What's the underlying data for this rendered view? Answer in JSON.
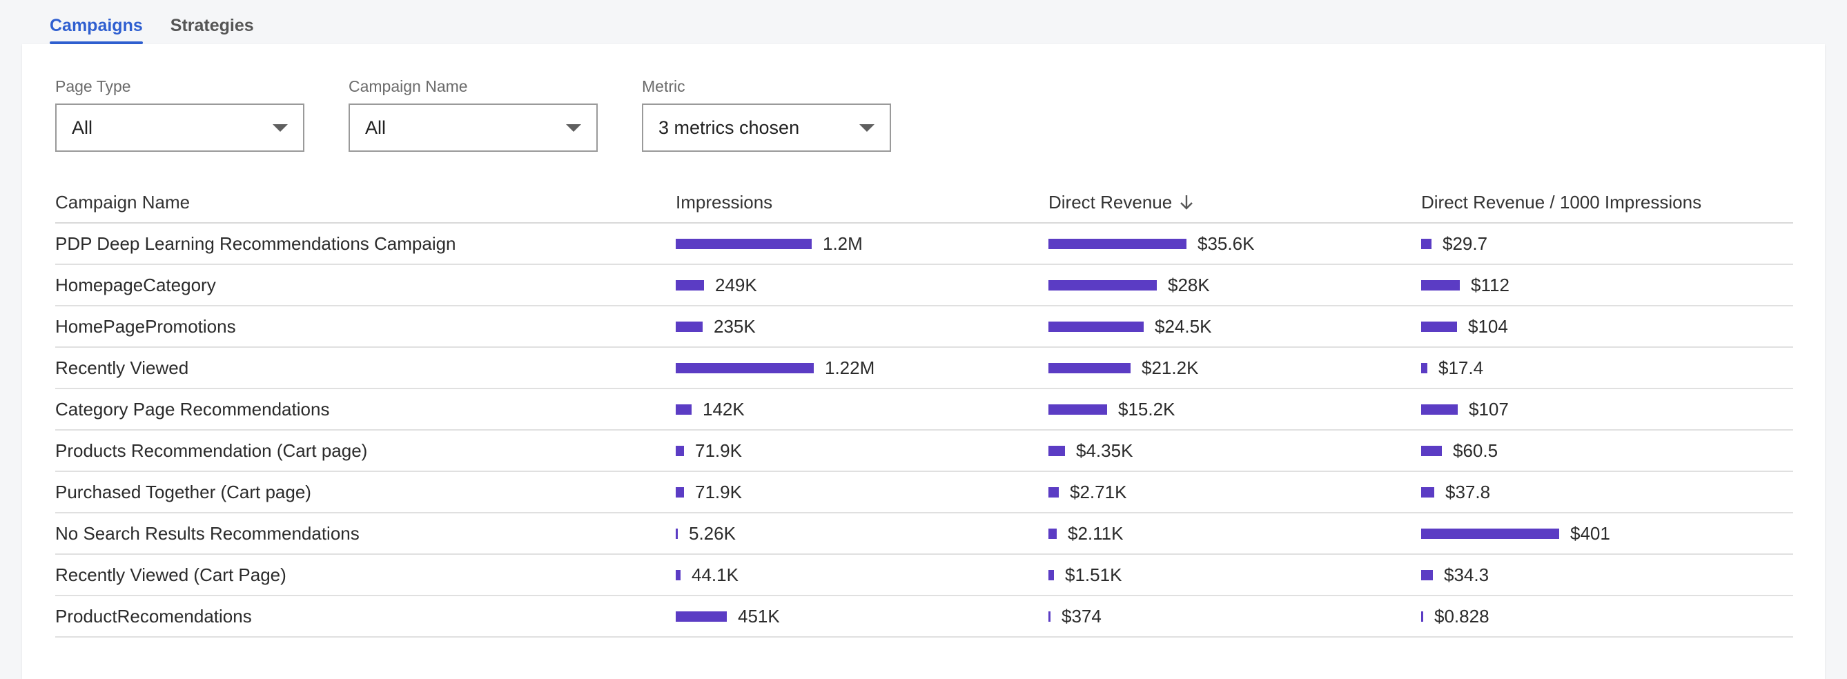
{
  "tabs": [
    {
      "label": "Campaigns",
      "active": true
    },
    {
      "label": "Strategies",
      "active": false
    }
  ],
  "filters": {
    "page_type": {
      "label": "Page Type",
      "value": "All"
    },
    "campaign_name": {
      "label": "Campaign Name",
      "value": "All"
    },
    "metric": {
      "label": "Metric",
      "value": "3 metrics chosen"
    }
  },
  "table": {
    "headers": {
      "campaign": "Campaign Name",
      "impressions": "Impressions",
      "revenue": "Direct Revenue",
      "rpm": "Direct Revenue / 1000 Impressions"
    },
    "sort_column": "Direct Revenue",
    "sort_direction": "descending",
    "bar_color": "#5b3cc4",
    "rows": [
      {
        "name": "PDP Deep Learning Recommendations Campaign",
        "impressions": "1.2M",
        "impressions_value": 1200000,
        "revenue": "$35.6K",
        "revenue_value": 35600,
        "rpm": "$29.7",
        "rpm_value": 29.7
      },
      {
        "name": "HomepageCategory",
        "impressions": "249K",
        "impressions_value": 249000,
        "revenue": "$28K",
        "revenue_value": 28000,
        "rpm": "$112",
        "rpm_value": 112
      },
      {
        "name": "HomePagePromotions",
        "impressions": "235K",
        "impressions_value": 235000,
        "revenue": "$24.5K",
        "revenue_value": 24500,
        "rpm": "$104",
        "rpm_value": 104
      },
      {
        "name": "Recently Viewed",
        "impressions": "1.22M",
        "impressions_value": 1220000,
        "revenue": "$21.2K",
        "revenue_value": 21200,
        "rpm": "$17.4",
        "rpm_value": 17.4
      },
      {
        "name": "Category Page Recommendations",
        "impressions": "142K",
        "impressions_value": 142000,
        "revenue": "$15.2K",
        "revenue_value": 15200,
        "rpm": "$107",
        "rpm_value": 107
      },
      {
        "name": "Products Recommendation (Cart page)",
        "impressions": "71.9K",
        "impressions_value": 71900,
        "revenue": "$4.35K",
        "revenue_value": 4350,
        "rpm": "$60.5",
        "rpm_value": 60.5
      },
      {
        "name": "Purchased Together (Cart page)",
        "impressions": "71.9K",
        "impressions_value": 71900,
        "revenue": "$2.71K",
        "revenue_value": 2710,
        "rpm": "$37.8",
        "rpm_value": 37.8
      },
      {
        "name": "No Search Results Recommendations",
        "impressions": "5.26K",
        "impressions_value": 5260,
        "revenue": "$2.11K",
        "revenue_value": 2110,
        "rpm": "$401",
        "rpm_value": 401
      },
      {
        "name": "Recently Viewed (Cart Page)",
        "impressions": "44.1K",
        "impressions_value": 44100,
        "revenue": "$1.51K",
        "revenue_value": 1510,
        "rpm": "$34.3",
        "rpm_value": 34.3
      },
      {
        "name": "ProductRecomendations",
        "impressions": "451K",
        "impressions_value": 451000,
        "revenue": "$374",
        "revenue_value": 374,
        "rpm": "$0.828",
        "rpm_value": 0.828
      }
    ]
  }
}
